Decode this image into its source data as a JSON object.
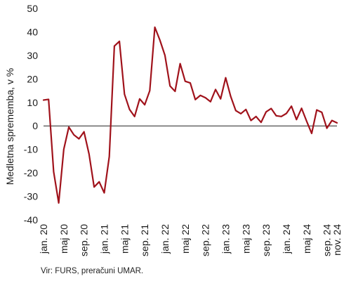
{
  "chart_data": {
    "type": "line",
    "title": "",
    "xlabel": "",
    "ylabel": "Medletna sprememba, v %",
    "ylim": [
      -40,
      50
    ],
    "yticks": [
      -40,
      -30,
      -20,
      -10,
      0,
      10,
      20,
      30,
      40,
      50
    ],
    "grid": false,
    "legend": "none",
    "series_color": "#a0121b",
    "zero_line_color": "#222222",
    "x_tick_labels": [
      {
        "label": "jan. 20",
        "index": 0
      },
      {
        "label": "maj 20",
        "index": 4
      },
      {
        "label": "sep. 20",
        "index": 8
      },
      {
        "label": "jan. 21",
        "index": 12
      },
      {
        "label": "maj 21",
        "index": 16
      },
      {
        "label": "sep. 21",
        "index": 20
      },
      {
        "label": "jan. 22",
        "index": 24
      },
      {
        "label": "maj 22",
        "index": 28
      },
      {
        "label": "sep. 22",
        "index": 32
      },
      {
        "label": "jan. 23",
        "index": 36
      },
      {
        "label": "maj 23",
        "index": 40
      },
      {
        "label": "sep. 23",
        "index": 44
      },
      {
        "label": "jan. 24",
        "index": 48
      },
      {
        "label": "maj 24",
        "index": 52
      },
      {
        "label": "sep. 24",
        "index": 56
      },
      {
        "label": "nov. 24",
        "index": 58
      }
    ],
    "series": [
      {
        "values": [
          11,
          11.3,
          -19.5,
          -32.8,
          -10,
          -0.5,
          -3.8,
          -5.5,
          -2.5,
          -12,
          -26,
          -23.8,
          -28.5,
          -13,
          34,
          36,
          13.5,
          7,
          4,
          11.5,
          9,
          15,
          42,
          36.5,
          30,
          17,
          14.7,
          26.5,
          19,
          18.3,
          11.2,
          13,
          12,
          10.3,
          15.5,
          11.5,
          20.5,
          12.5,
          6.5,
          5.2,
          7,
          2.3,
          4,
          1.5,
          6,
          7.4,
          4.3,
          4,
          5.3,
          8.4,
          2.7,
          7.5,
          2,
          -3.2,
          6.8,
          5.8,
          -1,
          2.3,
          1.3
        ]
      }
    ]
  },
  "source_note": "Vir: FURS, preračuni UMAR."
}
